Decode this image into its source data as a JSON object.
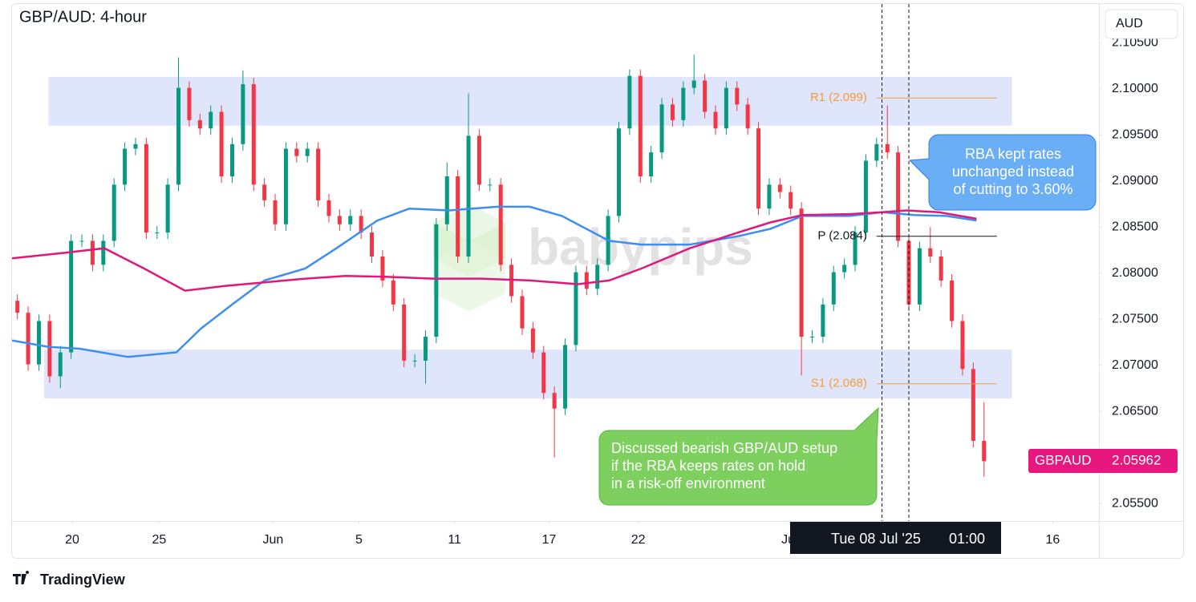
{
  "chart_data": {
    "type": "candlestick",
    "title": "GBP/AUD: 4-hour",
    "currency": "AUD",
    "brand": "TradingView",
    "watermark": "babypips",
    "candles": {
      "open": [
        2.077,
        2.0757,
        2.0701,
        2.0748,
        2.0688,
        2.0714,
        2.0835,
        2.0835,
        2.0809,
        2.0835,
        2.0896,
        2.0935,
        2.094,
        2.0844,
        2.0844,
        2.0896,
        2.1001,
        2.0966,
        2.0957,
        2.0975,
        2.0905,
        2.094,
        2.1005,
        2.0896,
        2.0879,
        2.0853,
        2.0935,
        2.0927,
        2.0935,
        2.0879,
        2.0862,
        2.0853,
        2.0862,
        2.0844,
        2.0818,
        2.0792,
        2.0766,
        2.0705,
        2.0705,
        2.0731,
        2.0853,
        2.0905,
        2.0818,
        2.0949,
        2.0896,
        2.0896,
        2.0809,
        2.0775,
        2.074,
        2.0714,
        2.067,
        2.0653,
        2.0722,
        2.0801,
        2.0783,
        2.0809,
        2.0862,
        2.0957,
        2.1014,
        2.0905,
        2.0931,
        2.0983,
        2.0966,
        2.1001,
        2.1009,
        2.0975,
        2.0957,
        2.1001,
        2.0983,
        2.0957,
        2.087,
        2.0896,
        2.0888,
        2.087,
        2.0731,
        2.0731,
        2.0766,
        2.0801,
        2.0809,
        2.0844,
        2.0922,
        2.094,
        2.0931,
        2.0835,
        2.0766,
        2.0827,
        2.0818,
        2.0792,
        2.0748,
        2.0696,
        2.0618
      ],
      "high": [
        2.0777,
        2.0764,
        2.0755,
        2.0755,
        2.0721,
        2.0842,
        2.0842,
        2.0842,
        2.0842,
        2.0903,
        2.0942,
        2.0947,
        2.0947,
        2.0851,
        2.0903,
        2.1034,
        2.1008,
        2.0973,
        2.0982,
        2.0982,
        2.0947,
        2.102,
        2.1012,
        2.0903,
        2.0886,
        2.0942,
        2.0942,
        2.0942,
        2.0942,
        2.0886,
        2.0869,
        2.0869,
        2.0869,
        2.0851,
        2.0825,
        2.0799,
        2.0773,
        2.0712,
        2.0738,
        2.086,
        2.092,
        2.0912,
        2.0995,
        2.0956,
        2.0903,
        2.0903,
        2.0816,
        2.0782,
        2.0747,
        2.0721,
        2.0677,
        2.0729,
        2.0808,
        2.0808,
        2.0816,
        2.0869,
        2.0964,
        2.1021,
        2.1021,
        2.0938,
        2.099,
        2.099,
        2.1008,
        2.1037,
        2.1016,
        2.0982,
        2.1008,
        2.1008,
        2.099,
        2.0964,
        2.0903,
        2.0903,
        2.0895,
        2.0877,
        2.0738,
        2.0773,
        2.0808,
        2.0816,
        2.0851,
        2.0929,
        2.0947,
        2.0982,
        2.0938,
        2.0842,
        2.0834,
        2.085,
        2.0825,
        2.0799,
        2.0755,
        2.0703,
        2.066
      ],
      "low": [
        2.075,
        2.0694,
        2.0694,
        2.0681,
        2.0675,
        2.0707,
        2.0828,
        2.0802,
        2.0802,
        2.0828,
        2.0889,
        2.0928,
        2.0837,
        2.0837,
        2.0837,
        2.0889,
        2.0959,
        2.095,
        2.095,
        2.0898,
        2.0898,
        2.0933,
        2.0889,
        2.0872,
        2.0846,
        2.0846,
        2.092,
        2.092,
        2.0872,
        2.0855,
        2.0846,
        2.0846,
        2.0837,
        2.0811,
        2.0785,
        2.0759,
        2.0698,
        2.0698,
        2.068,
        2.0724,
        2.0846,
        2.0811,
        2.0811,
        2.0889,
        2.0889,
        2.0802,
        2.0768,
        2.0733,
        2.0707,
        2.0663,
        2.06,
        2.0646,
        2.0715,
        2.0776,
        2.0776,
        2.0802,
        2.0855,
        2.095,
        2.0898,
        2.0898,
        2.0924,
        2.0959,
        2.0959,
        2.0994,
        2.0968,
        2.095,
        2.095,
        2.0976,
        2.095,
        2.0863,
        2.0863,
        2.0881,
        2.0863,
        2.0689,
        2.0724,
        2.0724,
        2.0759,
        2.0794,
        2.0802,
        2.0837,
        2.0915,
        2.0924,
        2.0828,
        2.0759,
        2.0759,
        2.0811,
        2.0785,
        2.0741,
        2.0689,
        2.0611,
        2.0579
      ],
      "close": [
        2.0757,
        2.0701,
        2.0748,
        2.0688,
        2.0714,
        2.0835,
        2.0835,
        2.0809,
        2.0835,
        2.0896,
        2.0935,
        2.094,
        2.0844,
        2.0844,
        2.0896,
        2.1001,
        2.0966,
        2.0957,
        2.0975,
        2.0905,
        2.094,
        2.1005,
        2.0896,
        2.0879,
        2.0853,
        2.0935,
        2.0927,
        2.0935,
        2.0879,
        2.0862,
        2.0853,
        2.0862,
        2.0844,
        2.0818,
        2.0792,
        2.0766,
        2.0705,
        2.0705,
        2.0731,
        2.0853,
        2.0905,
        2.0818,
        2.0949,
        2.0896,
        2.0896,
        2.0809,
        2.0775,
        2.074,
        2.0714,
        2.067,
        2.0653,
        2.0722,
        2.0801,
        2.0783,
        2.0809,
        2.0862,
        2.0957,
        2.1014,
        2.0905,
        2.0931,
        2.0983,
        2.0966,
        2.1001,
        2.1009,
        2.0975,
        2.0957,
        2.1001,
        2.0983,
        2.0957,
        2.087,
        2.0896,
        2.0888,
        2.087,
        2.0731,
        2.0731,
        2.0766,
        2.0801,
        2.0809,
        2.0844,
        2.0922,
        2.094,
        2.0931,
        2.0835,
        2.0766,
        2.0827,
        2.0818,
        2.0792,
        2.0748,
        2.0696,
        2.0618,
        2.0596
      ],
      "up_color": "#089981",
      "down_color": "#f23645"
    },
    "moving_averages": [
      {
        "color": "#3d8ef0",
        "x": [
          -0.5,
          2.9,
          5.8,
          10.3,
          14.8,
          17.1,
          20.0,
          23.0,
          26.8,
          29.7,
          33.5,
          36.5,
          40.2,
          44.7,
          47.7,
          50.7,
          55.1,
          58.1,
          62.6,
          67.1,
          70.1,
          73.1,
          77.5,
          80.5,
          83.5,
          86.5,
          89.3
        ],
        "values": [
          2.0727,
          2.072,
          2.0718,
          2.0709,
          2.0714,
          2.074,
          2.0766,
          2.0792,
          2.0805,
          2.0827,
          2.0857,
          2.087,
          2.0868,
          2.0872,
          2.0872,
          2.0862,
          2.0835,
          2.0831,
          2.0831,
          2.084,
          2.0848,
          2.0862,
          2.0862,
          2.0866,
          2.0863,
          2.0862,
          2.0857
        ]
      },
      {
        "color": "#e0187c",
        "x": [
          -0.5,
          4.4,
          8.1,
          11.8,
          15.6,
          19.3,
          23.0,
          26.8,
          30.5,
          34.2,
          38.7,
          43.2,
          47.7,
          52.2,
          55.1,
          58.1,
          62.6,
          67.1,
          70.1,
          73.1,
          77.5,
          80.5,
          82.8,
          85.8,
          89.3
        ],
        "values": [
          2.0816,
          2.0822,
          2.0827,
          2.0805,
          2.0781,
          2.0786,
          2.079,
          2.0794,
          2.0797,
          2.0796,
          2.0794,
          2.0794,
          2.0792,
          2.0788,
          2.0792,
          2.0805,
          2.0827,
          2.0844,
          2.0855,
          2.0863,
          2.0864,
          2.0866,
          2.0868,
          2.0866,
          2.0859
        ]
      }
    ],
    "zones": [
      {
        "x": [
          2.9,
          92.6
        ],
        "y": [
          2.096,
          2.1013
        ]
      },
      {
        "x": [
          2.5,
          92.6
        ],
        "y": [
          2.0664,
          2.0717
        ]
      }
    ],
    "levels": [
      {
        "label": "R1 (2.099)",
        "value": 2.099,
        "color": "#f59a3b",
        "x": [
          80.0,
          91.2
        ]
      },
      {
        "label": "P (2.084)",
        "value": 2.084,
        "color": "#131722",
        "x": [
          80.0,
          91.2
        ]
      },
      {
        "label": "S1 (2.068)",
        "value": 2.068,
        "color": "#f59a3b",
        "x": [
          80.0,
          91.2
        ]
      }
    ],
    "event_lines": [
      80.5,
      83.0
    ],
    "crosshair_label": [
      "Tue 08 Jul '25",
      "01:00"
    ],
    "last_price": {
      "label": "GBPAUD",
      "value": 2.05962,
      "color": "#e8177f"
    },
    "callouts": [
      {
        "lines": [
          "RBA kept rates",
          "unchanged instead",
          "of cutting to 3.60%"
        ],
        "color": "#6aaef5"
      },
      {
        "lines": [
          "Discussed bearish GBP/AUD setup",
          "if the RBA keeps rates on hold",
          "in a risk-off environment"
        ],
        "color": "#7dd05e"
      }
    ],
    "xlim": [
      -0.5,
      100.7
    ],
    "xticks": [
      {
        "value": 5.1,
        "label": "20"
      },
      {
        "value": 13.2,
        "label": "25"
      },
      {
        "value": 23.8,
        "label": "Jun"
      },
      {
        "value": 31.8,
        "label": "5"
      },
      {
        "value": 40.7,
        "label": "11"
      },
      {
        "value": 49.5,
        "label": "17"
      },
      {
        "value": 57.8,
        "label": "22"
      },
      {
        "value": 71.9,
        "label": "Jul"
      },
      {
        "value": 96.4,
        "label": "16"
      }
    ],
    "ylim": [
      2.0531,
      2.1092
    ],
    "yticks": [
      {
        "value": 2.055,
        "label": "2.05500"
      },
      {
        "value": 2.06,
        "label": "2.06000"
      },
      {
        "value": 2.065,
        "label": "2.06500"
      },
      {
        "value": 2.07,
        "label": "2.07000"
      },
      {
        "value": 2.075,
        "label": "2.07500"
      },
      {
        "value": 2.08,
        "label": "2.08000"
      },
      {
        "value": 2.085,
        "label": "2.08500"
      },
      {
        "value": 2.09,
        "label": "2.09000"
      },
      {
        "value": 2.095,
        "label": "2.09500"
      },
      {
        "value": 2.1,
        "label": "2.10000"
      },
      {
        "value": 2.105,
        "label": "2.10500"
      }
    ]
  }
}
